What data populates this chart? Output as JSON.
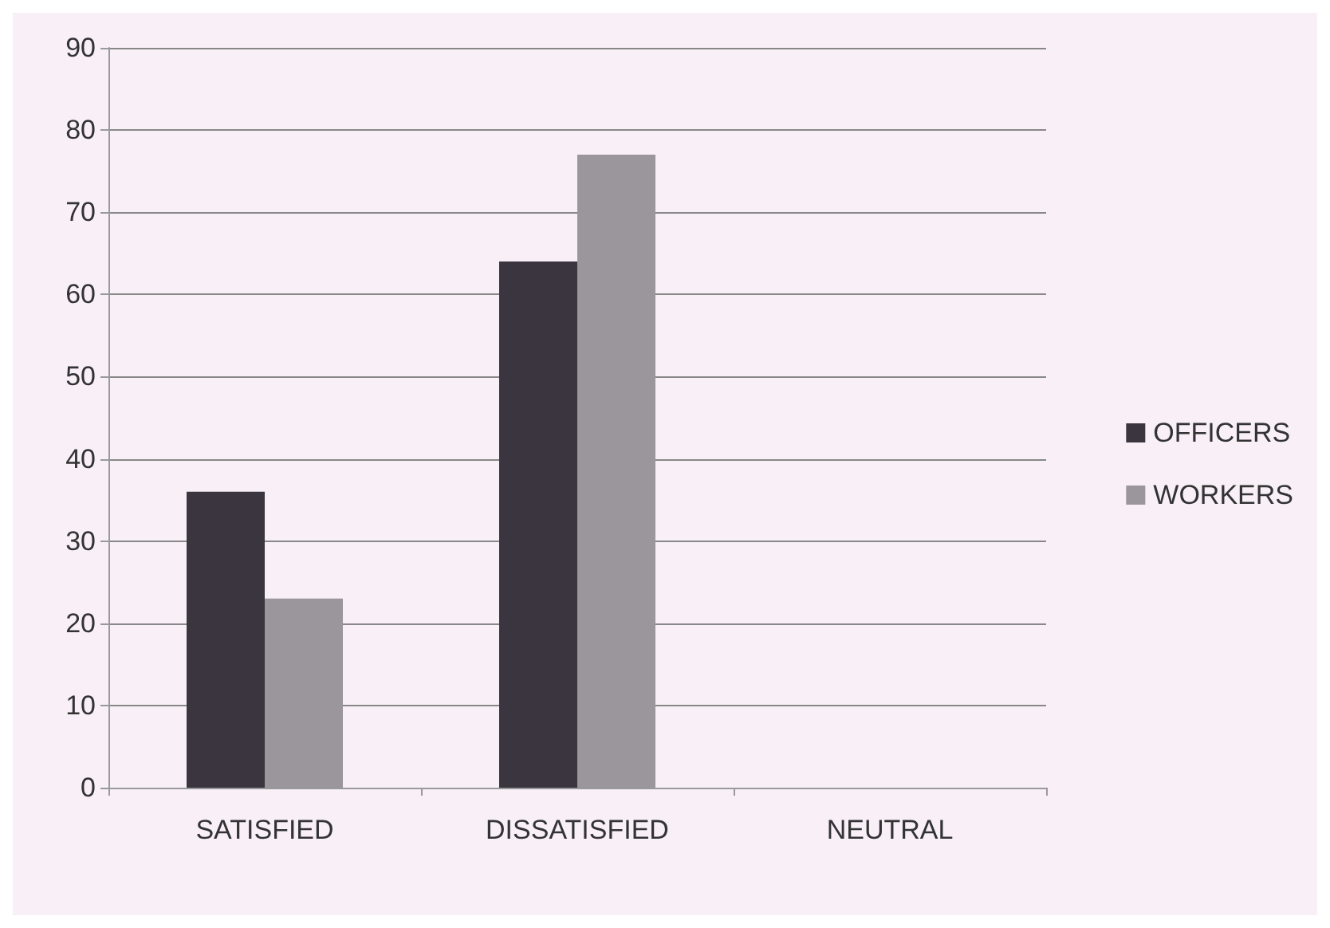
{
  "chart_data": {
    "type": "bar",
    "categories": [
      "SATISFIED",
      "DISSATISFIED",
      "NEUTRAL"
    ],
    "series": [
      {
        "name": "OFFICERS",
        "color": "#3b3540",
        "values": [
          36,
          64,
          0
        ]
      },
      {
        "name": "WORKERS",
        "color": "#9b969c",
        "values": [
          23,
          77,
          0
        ]
      }
    ],
    "ylim": [
      0,
      90
    ],
    "yticks": [
      0,
      10,
      20,
      30,
      40,
      50,
      60,
      70,
      80,
      90
    ],
    "grid": "y",
    "legend": "right"
  }
}
